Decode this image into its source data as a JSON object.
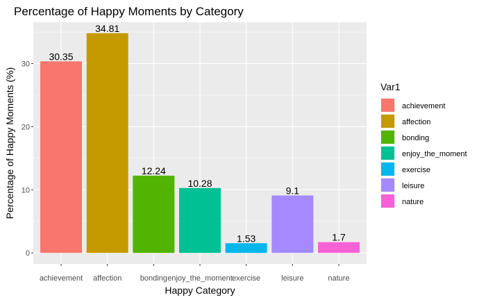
{
  "chart_data": {
    "type": "bar",
    "title": "Percentage of Happy Moments by Category",
    "xlabel": "Happy Category",
    "ylabel": "Percentage of Happy Moments (%)",
    "categories": [
      "achievement",
      "affection",
      "bonding",
      "enjoy_the_moment",
      "exercise",
      "leisure",
      "nature"
    ],
    "values": [
      30.35,
      34.81,
      12.24,
      10.28,
      1.53,
      9.1,
      1.7
    ],
    "value_labels": [
      "30.35",
      "34.81",
      "12.24",
      "10.28",
      "1.53",
      "9.1",
      "1.7"
    ],
    "colors": [
      "#F8766D",
      "#C49A00",
      "#53B400",
      "#00C094",
      "#00B6EB",
      "#A58AFF",
      "#FB61D7"
    ],
    "yticks": [
      0,
      10,
      20,
      30
    ],
    "ytick_labels": [
      "0",
      "10",
      "20",
      "30"
    ],
    "ylim": [
      -1.74,
      36.55
    ],
    "grid": true,
    "panel_background": "#EBEBEB",
    "legend": {
      "title": "Var1",
      "position": "right",
      "items": [
        "achievement",
        "affection",
        "bonding",
        "enjoy_the_moment",
        "exercise",
        "leisure",
        "nature"
      ]
    }
  }
}
